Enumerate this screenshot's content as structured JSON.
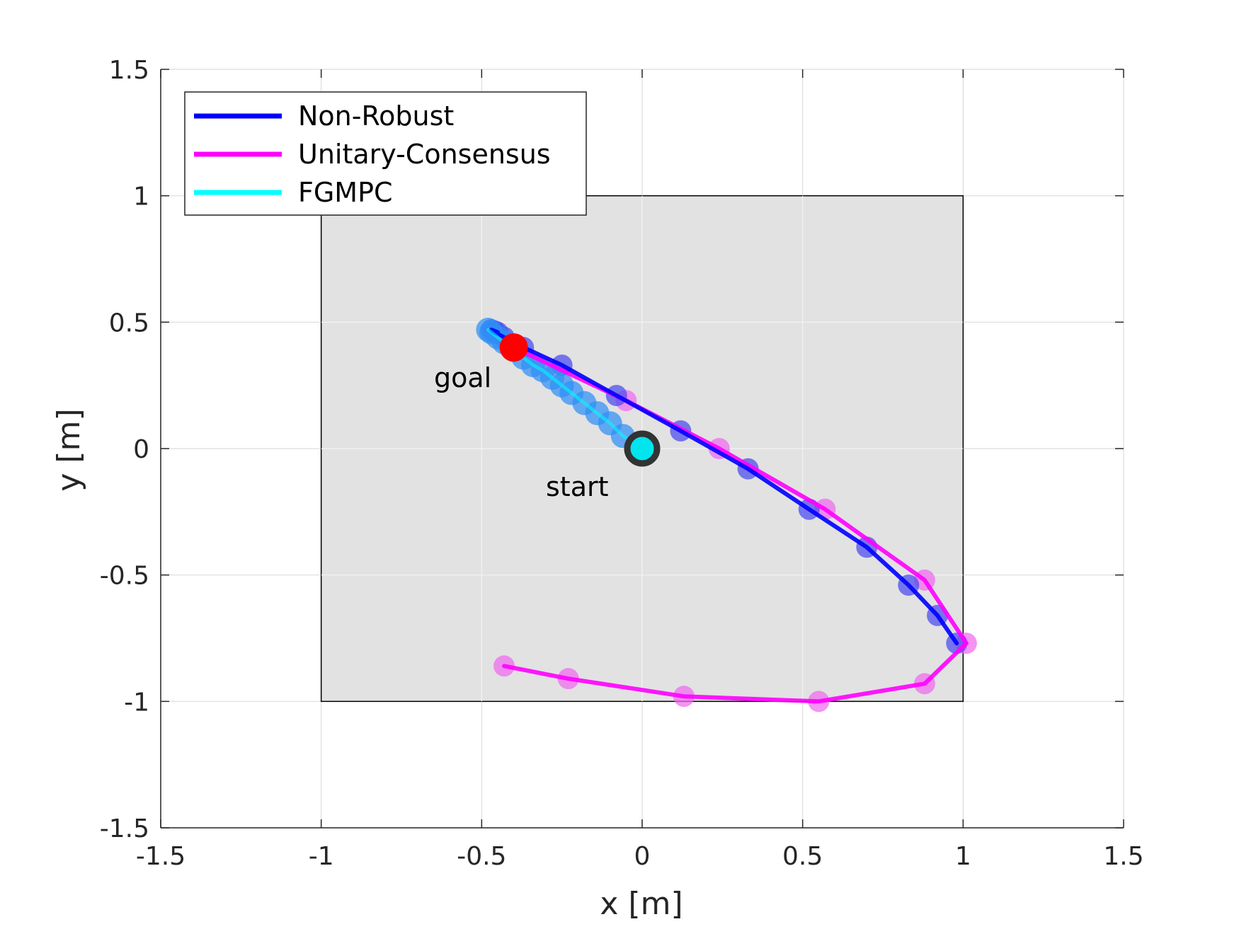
{
  "chart_data": {
    "type": "scatter",
    "title": "",
    "xlabel": "x [m]",
    "ylabel": "y [m]",
    "xlim": [
      -1.5,
      1.5
    ],
    "ylim": [
      -1.5,
      1.5
    ],
    "xticks": [
      -1.5,
      -1,
      -0.5,
      0,
      0.5,
      1,
      1.5
    ],
    "yticks": [
      -1.5,
      -1,
      -0.5,
      0,
      0.5,
      1,
      1.5
    ],
    "xtick_labels": [
      "-1.5",
      "-1",
      "-0.5",
      "0",
      "0.5",
      "1",
      "1.5"
    ],
    "ytick_labels": [
      "-1.5",
      "-1",
      "-0.5",
      "0",
      "0.5",
      "1",
      "1.5"
    ],
    "grid": true,
    "legend_position": "top-left",
    "region": {
      "x": [
        -1,
        1
      ],
      "y": [
        -1,
        1
      ],
      "fill": "#e2e2e2"
    },
    "goal": {
      "x": -0.4,
      "y": 0.4,
      "color": "#ff0000",
      "label": "goal"
    },
    "start": {
      "x": 0,
      "y": 0,
      "color": "#00e5ee",
      "edge": "#333333",
      "label": "start"
    },
    "series": [
      {
        "name": "Non-Robust",
        "color": "#0000ff",
        "marker_color": "#4a4aef",
        "x": [
          0.98,
          0.92,
          0.83,
          0.7,
          0.52,
          0.33,
          0.12,
          -0.08,
          -0.25,
          -0.37,
          -0.43,
          -0.46,
          -0.47,
          -0.46,
          -0.45
        ],
        "y": [
          -0.77,
          -0.66,
          -0.54,
          -0.39,
          -0.24,
          -0.08,
          0.07,
          0.21,
          0.33,
          0.4,
          0.44,
          0.46,
          0.47,
          0.465,
          0.46
        ]
      },
      {
        "name": "Unitary-Consensus",
        "color": "#ff00ff",
        "marker_color": "#f06af0",
        "x": [
          -0.43,
          -0.23,
          0.13,
          0.55,
          0.88,
          1.01,
          0.88,
          0.57,
          0.24,
          -0.05,
          -0.4
        ],
        "y": [
          -0.86,
          -0.91,
          -0.98,
          -1.0,
          -0.93,
          -0.77,
          -0.52,
          -0.24,
          0.0,
          0.19,
          0.4
        ]
      },
      {
        "name": "FGMPC",
        "color": "#00ffff",
        "marker_color": "#2f8ff5",
        "x": [
          0.0,
          -0.06,
          -0.1,
          -0.14,
          -0.18,
          -0.22,
          -0.25,
          -0.28,
          -0.31,
          -0.34,
          -0.37,
          -0.4,
          -0.43,
          -0.45,
          -0.47,
          -0.48
        ],
        "y": [
          0.0,
          0.05,
          0.1,
          0.14,
          0.18,
          0.22,
          0.25,
          0.28,
          0.31,
          0.33,
          0.36,
          0.39,
          0.42,
          0.44,
          0.46,
          0.47
        ]
      }
    ]
  }
}
